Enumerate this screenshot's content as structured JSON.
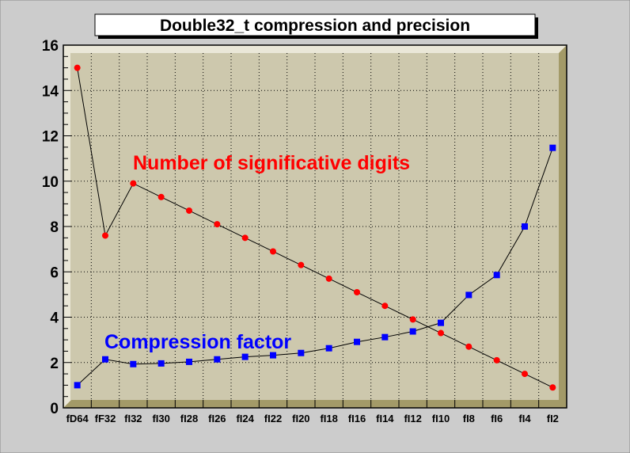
{
  "chart_data": {
    "type": "line",
    "title": "Double32_t compression and precision",
    "categories": [
      "fD64",
      "fF32",
      "fI32",
      "fI30",
      "fI28",
      "fI26",
      "fI24",
      "fI22",
      "fI20",
      "fI18",
      "fI16",
      "fI14",
      "fI12",
      "fI10",
      "fI8",
      "fI6",
      "fI4",
      "fI2"
    ],
    "ylim": [
      0,
      16
    ],
    "yticks": [
      0,
      2,
      4,
      6,
      8,
      10,
      12,
      14,
      16
    ],
    "grid": true,
    "series": [
      {
        "name": "Number of significative digits",
        "color": "#ff0000",
        "marker": "circle",
        "values": [
          15.0,
          7.6,
          9.9,
          9.3,
          8.7,
          8.1,
          7.5,
          6.9,
          6.3,
          5.7,
          5.1,
          4.5,
          3.9,
          3.3,
          2.7,
          2.1,
          1.5,
          0.9
        ]
      },
      {
        "name": "Compression factor",
        "color": "#0000ff",
        "marker": "square",
        "values": [
          1.0,
          2.14,
          1.93,
          1.96,
          2.03,
          2.14,
          2.25,
          2.32,
          2.42,
          2.63,
          2.91,
          3.12,
          3.37,
          3.75,
          4.98,
          5.86,
          8.0,
          11.47
        ]
      }
    ]
  }
}
